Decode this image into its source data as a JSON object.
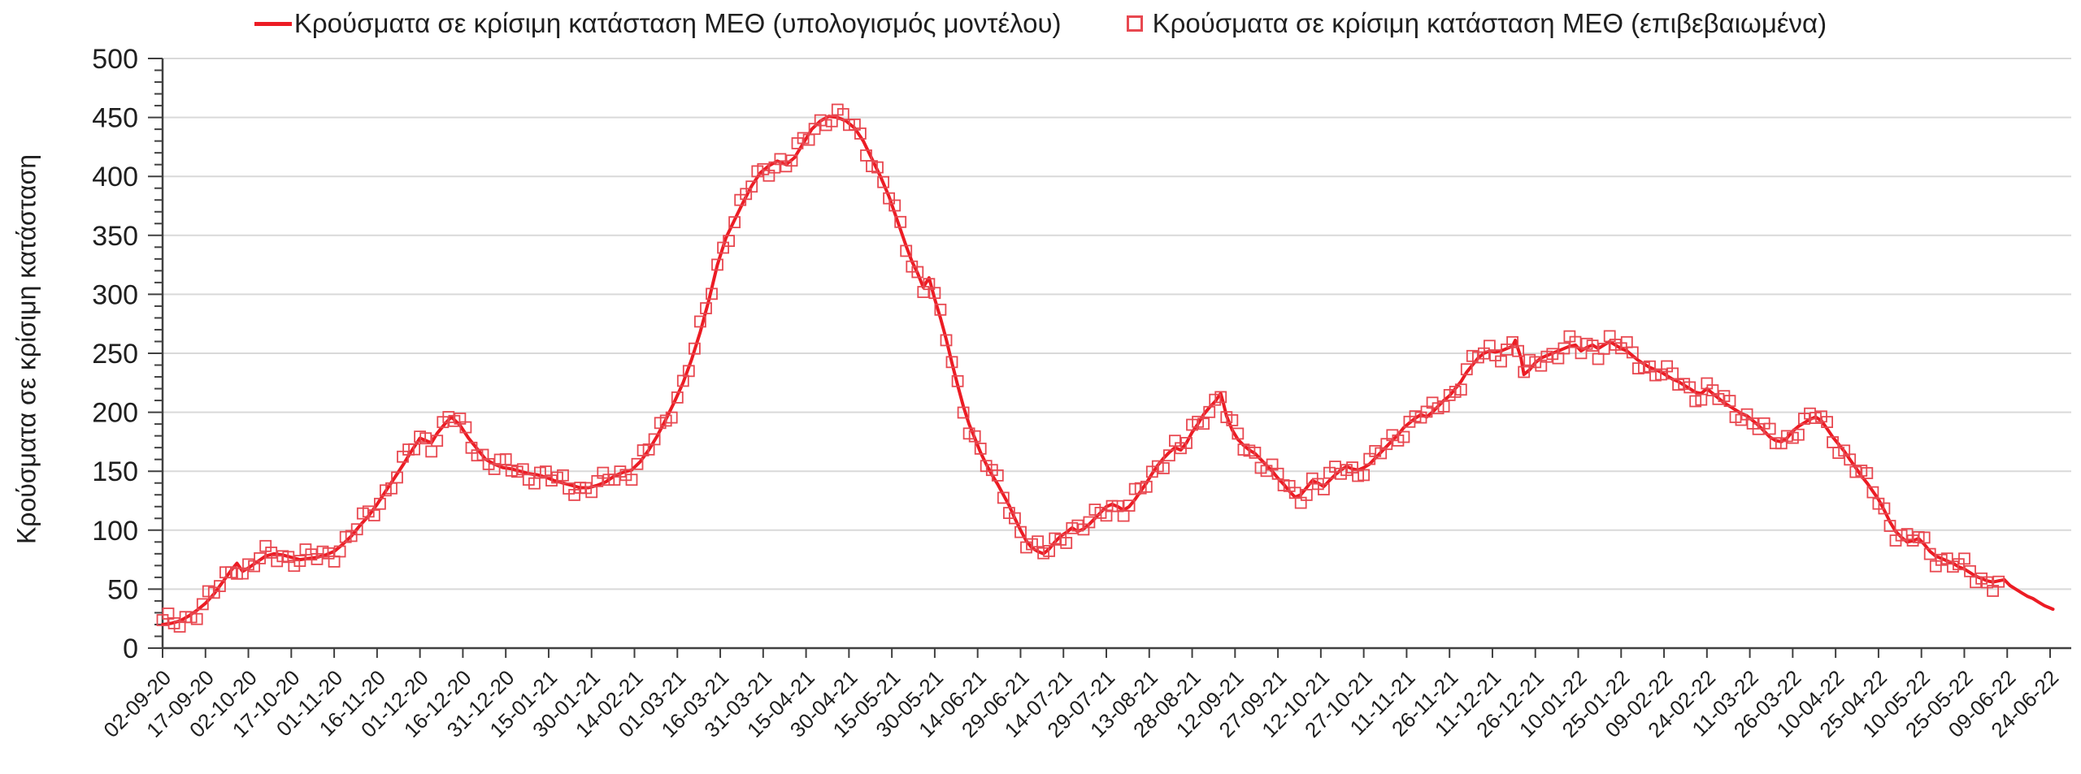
{
  "legend": {
    "model_label": "Κρούσματα σε κρίσιμη κατάσταση ΜΕΘ (υπολογισμός μοντέλου)",
    "confirmed_label": "Κρούσματα σε κρίσιμη κατάσταση ΜΕΘ (επιβεβαιωμένα)"
  },
  "chart_data": {
    "type": "line",
    "title": "",
    "xlabel": "",
    "ylabel": "Κρούσματα σε κρίσιμη κατάσταση",
    "ylim": [
      0,
      500
    ],
    "y_major_step": 50,
    "y_minor_step": 10,
    "y_tick_labels": [
      "0",
      "50",
      "100",
      "150",
      "200",
      "250",
      "300",
      "350",
      "400",
      "450",
      "500"
    ],
    "x_tick_interval_days": 15,
    "x_total_days": 661,
    "x_tick_labels": [
      "02-09-20",
      "17-09-20",
      "02-10-20",
      "17-10-20",
      "01-11-20",
      "16-11-20",
      "01-12-20",
      "16-12-20",
      "31-12-20",
      "15-01-21",
      "30-01-21",
      "14-02-21",
      "01-03-21",
      "16-03-21",
      "31-03-21",
      "15-04-21",
      "30-04-21",
      "15-05-21",
      "30-05-21",
      "14-06-21",
      "29-06-21",
      "14-07-21",
      "29-07-21",
      "13-08-21",
      "28-08-21",
      "12-09-21",
      "27-09-21",
      "12-10-21",
      "27-10-21",
      "11-11-21",
      "26-11-21",
      "11-12-21",
      "26-12-21",
      "10-01-22",
      "25-01-22",
      "09-02-22",
      "24-02-22",
      "11-03-22",
      "26-03-22",
      "10-04-22",
      "25-04-22",
      "10-05-22",
      "25-05-22",
      "09-06-22",
      "24-06-22"
    ],
    "grid": "horizontal-major",
    "legend_position": "top-center",
    "colors": {
      "model_line": "#ec1c24",
      "confirmed_marker": "#e84850",
      "grid": "#d9d9d9",
      "axis": "#404040",
      "text": "#1f1f1f",
      "background": "#ffffff"
    },
    "series": [
      {
        "name": "Κρούσματα σε κρίσιμη κατάσταση ΜΕΘ (υπολογισμός μοντέλου)",
        "style": "line",
        "stroke_width": 4,
        "points_day_value": [
          [
            0,
            20
          ],
          [
            3,
            21
          ],
          [
            6,
            23
          ],
          [
            9,
            27
          ],
          [
            12,
            32
          ],
          [
            15,
            38
          ],
          [
            18,
            46
          ],
          [
            21,
            56
          ],
          [
            24,
            66
          ],
          [
            26,
            72
          ],
          [
            28,
            65
          ],
          [
            30,
            68
          ],
          [
            33,
            73
          ],
          [
            36,
            78
          ],
          [
            39,
            80
          ],
          [
            42,
            79
          ],
          [
            45,
            77
          ],
          [
            48,
            75
          ],
          [
            51,
            76
          ],
          [
            54,
            77
          ],
          [
            57,
            79
          ],
          [
            60,
            82
          ],
          [
            63,
            88
          ],
          [
            66,
            95
          ],
          [
            69,
            104
          ],
          [
            72,
            112
          ],
          [
            75,
            122
          ],
          [
            78,
            133
          ],
          [
            81,
            144
          ],
          [
            84,
            155
          ],
          [
            87,
            167
          ],
          [
            90,
            178
          ],
          [
            92,
            176
          ],
          [
            94,
            174
          ],
          [
            96,
            182
          ],
          [
            99,
            191
          ],
          [
            101,
            196
          ],
          [
            104,
            189
          ],
          [
            107,
            178
          ],
          [
            110,
            169
          ],
          [
            113,
            160
          ],
          [
            116,
            156
          ],
          [
            119,
            153
          ],
          [
            122,
            152
          ],
          [
            125,
            150
          ],
          [
            128,
            148
          ],
          [
            131,
            147
          ],
          [
            134,
            145
          ],
          [
            137,
            142
          ],
          [
            140,
            140
          ],
          [
            143,
            138
          ],
          [
            146,
            136
          ],
          [
            149,
            136
          ],
          [
            152,
            138
          ],
          [
            155,
            141
          ],
          [
            158,
            146
          ],
          [
            161,
            149
          ],
          [
            164,
            151
          ],
          [
            167,
            158
          ],
          [
            170,
            168
          ],
          [
            173,
            180
          ],
          [
            176,
            194
          ],
          [
            179,
            209
          ],
          [
            182,
            225
          ],
          [
            185,
            245
          ],
          [
            188,
            268
          ],
          [
            191,
            295
          ],
          [
            194,
            325
          ],
          [
            197,
            348
          ],
          [
            200,
            363
          ],
          [
            203,
            378
          ],
          [
            206,
            392
          ],
          [
            209,
            403
          ],
          [
            212,
            409
          ],
          [
            215,
            413
          ],
          [
            218,
            410
          ],
          [
            221,
            416
          ],
          [
            224,
            428
          ],
          [
            227,
            440
          ],
          [
            230,
            447
          ],
          [
            233,
            451
          ],
          [
            236,
            450
          ],
          [
            239,
            447
          ],
          [
            242,
            441
          ],
          [
            245,
            430
          ],
          [
            248,
            415
          ],
          [
            251,
            400
          ],
          [
            254,
            383
          ],
          [
            257,
            362
          ],
          [
            260,
            341
          ],
          [
            262,
            328
          ],
          [
            264,
            318
          ],
          [
            266,
            306
          ],
          [
            268,
            314
          ],
          [
            270,
            296
          ],
          [
            272,
            280
          ],
          [
            274,
            262
          ],
          [
            276,
            242
          ],
          [
            278,
            223
          ],
          [
            280,
            205
          ],
          [
            282,
            190
          ],
          [
            284,
            178
          ],
          [
            286,
            166
          ],
          [
            288,
            156
          ],
          [
            290,
            147
          ],
          [
            292,
            139
          ],
          [
            294,
            130
          ],
          [
            296,
            121
          ],
          [
            298,
            110
          ],
          [
            300,
            100
          ],
          [
            302,
            91
          ],
          [
            304,
            85
          ],
          [
            306,
            82
          ],
          [
            308,
            80
          ],
          [
            310,
            84
          ],
          [
            312,
            90
          ],
          [
            314,
            95
          ],
          [
            316,
            98
          ],
          [
            318,
            102
          ],
          [
            320,
            99
          ],
          [
            322,
            101
          ],
          [
            324,
            105
          ],
          [
            326,
            110
          ],
          [
            328,
            115
          ],
          [
            330,
            120
          ],
          [
            332,
            122
          ],
          [
            334,
            120
          ],
          [
            336,
            117
          ],
          [
            338,
            120
          ],
          [
            340,
            126
          ],
          [
            342,
            133
          ],
          [
            344,
            140
          ],
          [
            346,
            148
          ],
          [
            348,
            155
          ],
          [
            350,
            161
          ],
          [
            352,
            166
          ],
          [
            354,
            170
          ],
          [
            356,
            168
          ],
          [
            358,
            174
          ],
          [
            360,
            183
          ],
          [
            362,
            190
          ],
          [
            364,
            198
          ],
          [
            366,
            204
          ],
          [
            368,
            209
          ],
          [
            370,
            216
          ],
          [
            371,
            207
          ],
          [
            372,
            197
          ],
          [
            374,
            185
          ],
          [
            376,
            177
          ],
          [
            378,
            172
          ],
          [
            380,
            168
          ],
          [
            382,
            165
          ],
          [
            384,
            160
          ],
          [
            386,
            155
          ],
          [
            388,
            150
          ],
          [
            390,
            144
          ],
          [
            392,
            139
          ],
          [
            394,
            133
          ],
          [
            396,
            128
          ],
          [
            398,
            130
          ],
          [
            400,
            136
          ],
          [
            402,
            142
          ],
          [
            404,
            140
          ],
          [
            406,
            137
          ],
          [
            408,
            142
          ],
          [
            410,
            147
          ],
          [
            412,
            151
          ],
          [
            414,
            154
          ],
          [
            416,
            152
          ],
          [
            418,
            151
          ],
          [
            420,
            153
          ],
          [
            422,
            156
          ],
          [
            424,
            161
          ],
          [
            426,
            166
          ],
          [
            428,
            171
          ],
          [
            430,
            176
          ],
          [
            432,
            181
          ],
          [
            434,
            187
          ],
          [
            436,
            191
          ],
          [
            438,
            195
          ],
          [
            440,
            198
          ],
          [
            442,
            196
          ],
          [
            444,
            200
          ],
          [
            446,
            205
          ],
          [
            448,
            210
          ],
          [
            450,
            214
          ],
          [
            452,
            220
          ],
          [
            454,
            226
          ],
          [
            456,
            234
          ],
          [
            458,
            240
          ],
          [
            460,
            246
          ],
          [
            462,
            250
          ],
          [
            464,
            252
          ],
          [
            466,
            251
          ],
          [
            468,
            252
          ],
          [
            470,
            254
          ],
          [
            472,
            256
          ],
          [
            473,
            261
          ],
          [
            475,
            246
          ],
          [
            476,
            232
          ],
          [
            478,
            236
          ],
          [
            480,
            242
          ],
          [
            482,
            246
          ],
          [
            484,
            248
          ],
          [
            486,
            250
          ],
          [
            488,
            252
          ],
          [
            490,
            254
          ],
          [
            492,
            256
          ],
          [
            494,
            257
          ],
          [
            496,
            252
          ],
          [
            498,
            255
          ],
          [
            500,
            257
          ],
          [
            502,
            254
          ],
          [
            504,
            257
          ],
          [
            506,
            260
          ],
          [
            508,
            257
          ],
          [
            510,
            254
          ],
          [
            512,
            252
          ],
          [
            514,
            248
          ],
          [
            516,
            244
          ],
          [
            518,
            241
          ],
          [
            520,
            238
          ],
          [
            522,
            236
          ],
          [
            524,
            234
          ],
          [
            526,
            231
          ],
          [
            528,
            228
          ],
          [
            530,
            226
          ],
          [
            532,
            223
          ],
          [
            534,
            220
          ],
          [
            536,
            217
          ],
          [
            538,
            216
          ],
          [
            540,
            220
          ],
          [
            542,
            216
          ],
          [
            544,
            212
          ],
          [
            546,
            208
          ],
          [
            548,
            205
          ],
          [
            550,
            202
          ],
          [
            552,
            199
          ],
          [
            554,
            197
          ],
          [
            556,
            193
          ],
          [
            558,
            189
          ],
          [
            560,
            184
          ],
          [
            562,
            179
          ],
          [
            564,
            176
          ],
          [
            566,
            175
          ],
          [
            568,
            178
          ],
          [
            570,
            184
          ],
          [
            572,
            188
          ],
          [
            574,
            191
          ],
          [
            576,
            194
          ],
          [
            578,
            196
          ],
          [
            580,
            193
          ],
          [
            582,
            186
          ],
          [
            584,
            179
          ],
          [
            586,
            173
          ],
          [
            588,
            167
          ],
          [
            590,
            160
          ],
          [
            592,
            153
          ],
          [
            594,
            146
          ],
          [
            596,
            140
          ],
          [
            598,
            133
          ],
          [
            600,
            126
          ],
          [
            602,
            117
          ],
          [
            604,
            107
          ],
          [
            606,
            99
          ],
          [
            608,
            94
          ],
          [
            610,
            90
          ],
          [
            612,
            91
          ],
          [
            614,
            93
          ],
          [
            616,
            88
          ],
          [
            618,
            82
          ],
          [
            620,
            78
          ],
          [
            622,
            76
          ],
          [
            624,
            74
          ],
          [
            626,
            72
          ],
          [
            628,
            69
          ],
          [
            630,
            67
          ],
          [
            632,
            64
          ],
          [
            634,
            61
          ],
          [
            636,
            59
          ],
          [
            638,
            57
          ],
          [
            640,
            56
          ],
          [
            642,
            57
          ],
          [
            644,
            58
          ],
          [
            646,
            53
          ],
          [
            648,
            50
          ],
          [
            650,
            47
          ],
          [
            652,
            44
          ],
          [
            654,
            42
          ],
          [
            656,
            39
          ],
          [
            658,
            36
          ],
          [
            660,
            34
          ],
          [
            661,
            33
          ]
        ]
      },
      {
        "name": "Κρούσματα σε κρίσιμη κατάσταση ΜΕΘ (επιβεβαιωμένα)",
        "style": "hollow-square-markers",
        "marker_size": 13,
        "marker_stroke_width": 1.8,
        "derived_from": "model",
        "sample_step_days": 2,
        "end_day": 642,
        "jitter": {
          "amplitude": 9,
          "f1": 0.91,
          "w1": 0.55,
          "f2": 0.37,
          "w2": 0.45,
          "p2": 1.2
        }
      }
    ]
  }
}
